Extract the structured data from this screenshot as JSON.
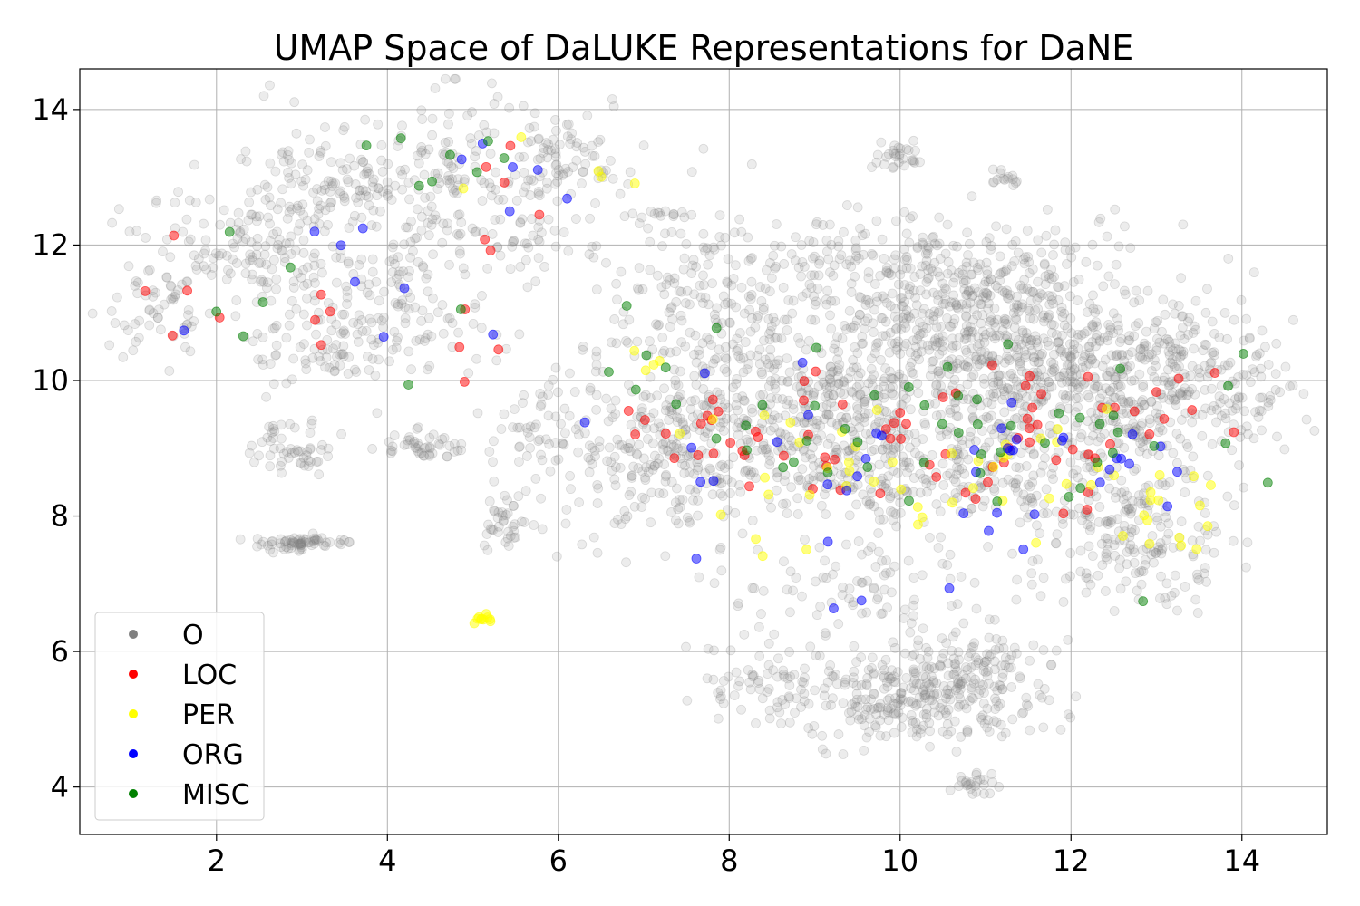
{
  "chart_data": {
    "type": "scatter",
    "title": "UMAP Space of DaLUKE Representations for DaNE",
    "xlabel": "",
    "ylabel": "",
    "xlim": [
      0.4,
      15.0
    ],
    "ylim": [
      3.3,
      14.6
    ],
    "x_ticks": [
      "2",
      "4",
      "6",
      "8",
      "10",
      "12",
      "14"
    ],
    "y_ticks": [
      "4",
      "6",
      "8",
      "10",
      "12",
      "14"
    ],
    "grid": true,
    "legend_position": "lower-left",
    "series": [
      {
        "name": "O",
        "color": "#808080",
        "opacity": 0.15,
        "clusters": [
          {
            "cx": 4.8,
            "cy": 12.8,
            "sx": 0.9,
            "sy": 0.8,
            "n": 260
          },
          {
            "cx": 3.2,
            "cy": 12.8,
            "sx": 0.6,
            "sy": 0.5,
            "n": 120
          },
          {
            "cx": 2.4,
            "cy": 11.9,
            "sx": 0.6,
            "sy": 0.4,
            "n": 110
          },
          {
            "cx": 1.3,
            "cy": 11.0,
            "sx": 0.35,
            "sy": 0.4,
            "n": 60
          },
          {
            "cx": 4.0,
            "cy": 11.0,
            "sx": 0.6,
            "sy": 0.45,
            "n": 120
          },
          {
            "cx": 3.2,
            "cy": 10.5,
            "sx": 0.4,
            "sy": 0.3,
            "n": 60
          },
          {
            "cx": 2.9,
            "cy": 9.0,
            "sx": 0.25,
            "sy": 0.2,
            "n": 55
          },
          {
            "cx": 4.4,
            "cy": 9.05,
            "sx": 0.25,
            "sy": 0.1,
            "n": 45
          },
          {
            "cx": 3.0,
            "cy": 7.6,
            "sx": 0.35,
            "sy": 0.05,
            "n": 70
          },
          {
            "cx": 5.4,
            "cy": 7.9,
            "sx": 0.12,
            "sy": 0.25,
            "n": 40
          },
          {
            "cx": 5.7,
            "cy": 9.2,
            "sx": 0.25,
            "sy": 0.35,
            "n": 50
          },
          {
            "cx": 6.1,
            "cy": 13.2,
            "sx": 0.35,
            "sy": 0.3,
            "n": 60
          },
          {
            "cx": 7.3,
            "cy": 9.0,
            "sx": 0.6,
            "sy": 0.7,
            "n": 260
          },
          {
            "cx": 7.8,
            "cy": 11.2,
            "sx": 0.7,
            "sy": 0.6,
            "n": 170
          },
          {
            "cx": 9.0,
            "cy": 9.5,
            "sx": 1.0,
            "sy": 0.6,
            "n": 380
          },
          {
            "cx": 9.6,
            "cy": 11.5,
            "sx": 0.8,
            "sy": 0.5,
            "n": 170
          },
          {
            "cx": 10.8,
            "cy": 10.3,
            "sx": 1.0,
            "sy": 0.6,
            "n": 430
          },
          {
            "cx": 11.2,
            "cy": 11.5,
            "sx": 0.6,
            "sy": 0.5,
            "n": 170
          },
          {
            "cx": 12.3,
            "cy": 10.2,
            "sx": 0.8,
            "sy": 0.7,
            "n": 380
          },
          {
            "cx": 13.4,
            "cy": 9.8,
            "sx": 0.6,
            "sy": 0.5,
            "n": 170
          },
          {
            "cx": 10.5,
            "cy": 8.6,
            "sx": 1.2,
            "sy": 0.35,
            "n": 260
          },
          {
            "cx": 12.7,
            "cy": 7.8,
            "sx": 0.6,
            "sy": 0.5,
            "n": 210
          },
          {
            "cx": 10.2,
            "cy": 5.3,
            "sx": 0.7,
            "sy": 0.3,
            "n": 260
          },
          {
            "cx": 10.8,
            "cy": 5.8,
            "sx": 0.5,
            "sy": 0.35,
            "n": 120
          },
          {
            "cx": 8.5,
            "cy": 5.6,
            "sx": 0.5,
            "sy": 0.3,
            "n": 70
          },
          {
            "cx": 9.5,
            "cy": 7.0,
            "sx": 0.8,
            "sy": 0.4,
            "n": 90
          },
          {
            "cx": 10.0,
            "cy": 13.3,
            "sx": 0.15,
            "sy": 0.12,
            "n": 30
          },
          {
            "cx": 11.2,
            "cy": 13.0,
            "sx": 0.1,
            "sy": 0.05,
            "n": 15
          },
          {
            "cx": 10.9,
            "cy": 4.0,
            "sx": 0.15,
            "sy": 0.08,
            "n": 25
          },
          {
            "cx": 7.2,
            "cy": 12.45,
            "sx": 0.15,
            "sy": 0.03,
            "n": 15
          }
        ]
      },
      {
        "name": "LOC",
        "color": "#ff0000",
        "opacity": 0.5,
        "clusters": [
          {
            "cx": 8.6,
            "cy": 9.1,
            "sx": 0.9,
            "sy": 0.5,
            "n": 28
          },
          {
            "cx": 11.0,
            "cy": 9.2,
            "sx": 1.1,
            "sy": 0.6,
            "n": 28
          },
          {
            "cx": 12.5,
            "cy": 9.5,
            "sx": 0.8,
            "sy": 0.7,
            "n": 14
          },
          {
            "cx": 3.8,
            "cy": 10.8,
            "sx": 0.9,
            "sy": 0.5,
            "n": 9
          },
          {
            "cx": 5.4,
            "cy": 12.6,
            "sx": 0.3,
            "sy": 0.6,
            "n": 6
          },
          {
            "cx": 7.4,
            "cy": 9.2,
            "sx": 0.3,
            "sy": 0.4,
            "n": 6
          },
          {
            "cx": 1.7,
            "cy": 11.2,
            "sx": 0.3,
            "sy": 0.3,
            "n": 4
          }
        ]
      },
      {
        "name": "PER",
        "color": "#ffff00",
        "opacity": 0.5,
        "clusters": [
          {
            "cx": 9.0,
            "cy": 8.6,
            "sx": 0.8,
            "sy": 0.5,
            "n": 22
          },
          {
            "cx": 11.5,
            "cy": 8.8,
            "sx": 1.0,
            "sy": 0.5,
            "n": 22
          },
          {
            "cx": 12.9,
            "cy": 8.1,
            "sx": 0.4,
            "sy": 0.4,
            "n": 14
          },
          {
            "cx": 5.1,
            "cy": 6.5,
            "sx": 0.06,
            "sy": 0.05,
            "n": 10
          },
          {
            "cx": 5.8,
            "cy": 13.2,
            "sx": 0.6,
            "sy": 0.3,
            "n": 5
          },
          {
            "cx": 7.2,
            "cy": 10.3,
            "sx": 0.3,
            "sy": 0.5,
            "n": 5
          }
        ]
      },
      {
        "name": "ORG",
        "color": "#0000ff",
        "opacity": 0.5,
        "clusters": [
          {
            "cx": 9.0,
            "cy": 8.8,
            "sx": 1.0,
            "sy": 0.6,
            "n": 14
          },
          {
            "cx": 11.5,
            "cy": 8.9,
            "sx": 1.0,
            "sy": 0.7,
            "n": 16
          },
          {
            "cx": 12.8,
            "cy": 8.4,
            "sx": 0.6,
            "sy": 0.6,
            "n": 8
          },
          {
            "cx": 3.7,
            "cy": 11.6,
            "sx": 0.9,
            "sy": 0.5,
            "n": 8
          },
          {
            "cx": 5.6,
            "cy": 13.3,
            "sx": 0.6,
            "sy": 0.5,
            "n": 6
          },
          {
            "cx": 10.2,
            "cy": 6.8,
            "sx": 0.8,
            "sy": 0.7,
            "n": 5
          }
        ]
      },
      {
        "name": "MISC",
        "color": "#008000",
        "opacity": 0.5,
        "clusters": [
          {
            "cx": 9.0,
            "cy": 9.3,
            "sx": 1.0,
            "sy": 0.6,
            "n": 18
          },
          {
            "cx": 11.3,
            "cy": 9.4,
            "sx": 1.0,
            "sy": 0.6,
            "n": 20
          },
          {
            "cx": 12.9,
            "cy": 9.1,
            "sx": 0.6,
            "sy": 0.8,
            "n": 10
          },
          {
            "cx": 4.9,
            "cy": 13.3,
            "sx": 0.6,
            "sy": 0.5,
            "n": 8
          },
          {
            "cx": 3.3,
            "cy": 11.0,
            "sx": 1.0,
            "sy": 0.7,
            "n": 7
          },
          {
            "cx": 7.2,
            "cy": 10.4,
            "sx": 0.5,
            "sy": 0.6,
            "n": 6
          }
        ]
      }
    ]
  }
}
